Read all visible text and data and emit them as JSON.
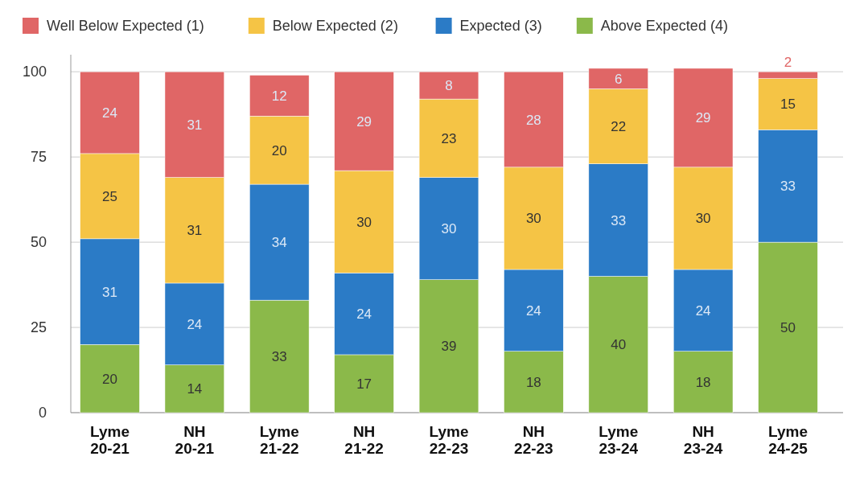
{
  "chart_data": {
    "type": "bar",
    "stacked": true,
    "categories": [
      "Lyme\n20-21",
      "NH\n20-21",
      "Lyme\n21-22",
      "NH\n21-22",
      "Lyme\n22-23",
      "NH\n22-23",
      "Lyme\n23-24",
      "NH\n23-24",
      "Lyme\n24-25"
    ],
    "series": [
      {
        "name": "Above Expected (4)",
        "color": "#8bb94a",
        "values": [
          20,
          14,
          33,
          17,
          39,
          18,
          40,
          18,
          50
        ]
      },
      {
        "name": "Expected (3)",
        "color": "#2b7bc6",
        "values": [
          31,
          24,
          34,
          24,
          30,
          24,
          33,
          24,
          33
        ]
      },
      {
        "name": "Below Expected (2)",
        "color": "#f5c445",
        "values": [
          25,
          31,
          20,
          30,
          23,
          30,
          22,
          30,
          15
        ]
      },
      {
        "name": "Well Below Expected (1)",
        "color": "#e06666",
        "values": [
          24,
          31,
          12,
          29,
          8,
          28,
          6,
          29,
          2
        ]
      }
    ],
    "ylim": [
      0,
      105
    ],
    "yticks": [
      0,
      25,
      50,
      75,
      100
    ],
    "grid": "y",
    "legend": "top",
    "data_labels": true
  }
}
